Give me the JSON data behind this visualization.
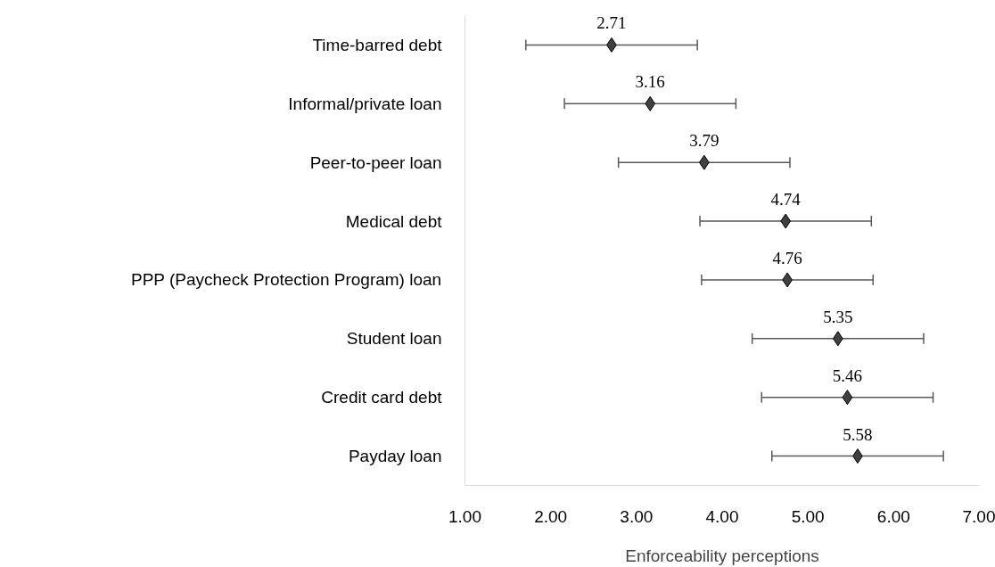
{
  "chart_data": {
    "type": "scatter",
    "orientation": "horizontal",
    "xlabel": "Enforceability perceptions",
    "categories": [
      "Time-barred debt",
      "Informal/private loan",
      "Peer-to-peer loan",
      "Medical debt",
      "PPP (Paycheck Protection Program) loan",
      "Student loan",
      "Credit card debt",
      "Payday loan"
    ],
    "series": [
      {
        "color": "#404040",
        "values": [
          2.71,
          3.16,
          3.79,
          4.74,
          4.76,
          5.35,
          5.46,
          5.58
        ],
        "errors": [
          1,
          1,
          1,
          1,
          1,
          1,
          1,
          1
        ]
      }
    ],
    "xlim": [
      1,
      7
    ],
    "xticks": [
      {
        "value": 1,
        "label": "1.00"
      },
      {
        "value": 2,
        "label": "2.00"
      },
      {
        "value": 3,
        "label": "3.00"
      },
      {
        "value": 4,
        "label": "4.00"
      },
      {
        "value": 5,
        "label": "5.00"
      },
      {
        "value": 6,
        "label": "6.00"
      },
      {
        "value": 7,
        "label": "7.00"
      }
    ],
    "data_labels": true,
    "marker": "diamond",
    "grid": false
  }
}
